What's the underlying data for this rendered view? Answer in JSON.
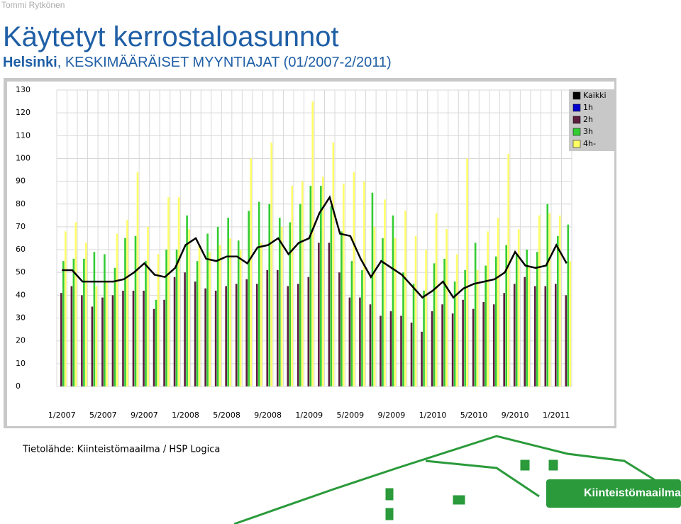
{
  "header": {
    "author": "Tommi Rytkönen",
    "title": "Käytetyt kerrostaloasunnot",
    "subtitle_bold": "Helsinki",
    "subtitle_rest": ", KESKIMÄÄRÄISET MYYNTIAJAT  (01/2007-2/2011)"
  },
  "source": "Tietolähde: Kiinteistömaailma / HSP Logica",
  "logo": "Kiinteistömaailma",
  "chart_data": {
    "type": "bar-line",
    "categories": [
      "1/2007",
      null,
      null,
      null,
      "5/2007",
      null,
      null,
      null,
      "9/2007",
      null,
      null,
      null,
      "1/2008",
      null,
      null,
      null,
      "5/2008",
      null,
      null,
      null,
      "9/2008",
      null,
      null,
      null,
      "1/2009",
      null,
      null,
      null,
      "5/2009",
      null,
      null,
      null,
      "9/2009",
      null,
      null,
      null,
      "1/2010",
      null,
      null,
      null,
      "5/2010",
      null,
      null,
      null,
      "9/2010",
      null,
      null,
      null,
      "1/2011",
      null
    ],
    "ylim": [
      0,
      130
    ],
    "yticks": [
      0,
      10,
      20,
      30,
      40,
      50,
      60,
      70,
      80,
      90,
      100,
      110,
      120,
      130
    ],
    "grid": true,
    "legend": "top-right",
    "series": [
      {
        "name": "Kaikki",
        "color": "#000000",
        "kind": "line",
        "values": [
          51,
          51,
          46,
          46,
          46,
          46,
          47,
          50,
          54,
          49,
          48,
          52,
          62,
          65,
          56,
          55,
          57,
          57,
          54,
          61,
          62,
          65,
          58,
          63,
          65,
          76,
          83,
          67,
          66,
          56,
          48,
          55,
          52,
          49,
          44,
          39,
          42,
          46,
          39,
          43,
          45,
          46,
          47,
          50,
          59,
          53,
          52,
          53,
          62,
          54
        ]
      },
      {
        "name": "1h",
        "color": "#0000cc",
        "kind": "bar",
        "values": [
          null,
          null,
          null,
          null,
          null,
          null,
          null,
          null,
          null,
          null,
          null,
          null,
          null,
          null,
          null,
          null,
          null,
          null,
          null,
          null,
          null,
          null,
          null,
          null,
          null,
          null,
          null,
          null,
          null,
          null,
          null,
          null,
          null,
          null,
          null,
          null,
          null,
          null,
          null,
          null,
          null,
          null,
          null,
          null,
          null,
          null,
          null,
          null,
          null,
          null
        ]
      },
      {
        "name": "2h",
        "color": "#5c1e3e",
        "kind": "bar",
        "values": [
          41,
          44,
          40,
          35,
          39,
          40,
          42,
          42,
          42,
          34,
          38,
          48,
          50,
          46,
          43,
          42,
          44,
          45,
          47,
          45,
          51,
          51,
          44,
          45,
          48,
          63,
          63,
          50,
          39,
          39,
          36,
          31,
          33,
          31,
          28,
          24,
          33,
          36,
          32,
          38,
          34,
          37,
          36,
          41,
          45,
          48,
          44,
          44,
          45,
          40
        ]
      },
      {
        "name": "3h",
        "color": "#33cc33",
        "kind": "bar",
        "values": [
          55,
          56,
          56,
          59,
          58,
          52,
          65,
          66,
          55,
          38,
          60,
          60,
          75,
          55,
          67,
          70,
          74,
          64,
          77,
          81,
          80,
          74,
          72,
          80,
          88,
          88,
          79,
          68,
          55,
          51,
          85,
          65,
          75,
          50,
          45,
          42,
          54,
          56,
          46,
          51,
          63,
          53,
          57,
          62,
          58,
          60,
          59,
          80,
          66,
          71
        ]
      },
      {
        "name": "4h-",
        "color": "#ffff66",
        "kind": "bar",
        "values": [
          68,
          72,
          63,
          44,
          46,
          67,
          73,
          94,
          70,
          58,
          83,
          83,
          69,
          62,
          59,
          62,
          65,
          60,
          100,
          63,
          107,
          70,
          88,
          90,
          125,
          92,
          107,
          89,
          94,
          90,
          70,
          82,
          65,
          77,
          66,
          60,
          76,
          69,
          58,
          100,
          51,
          68,
          74,
          102,
          69,
          53,
          75,
          76,
          75,
          55
        ]
      }
    ]
  }
}
